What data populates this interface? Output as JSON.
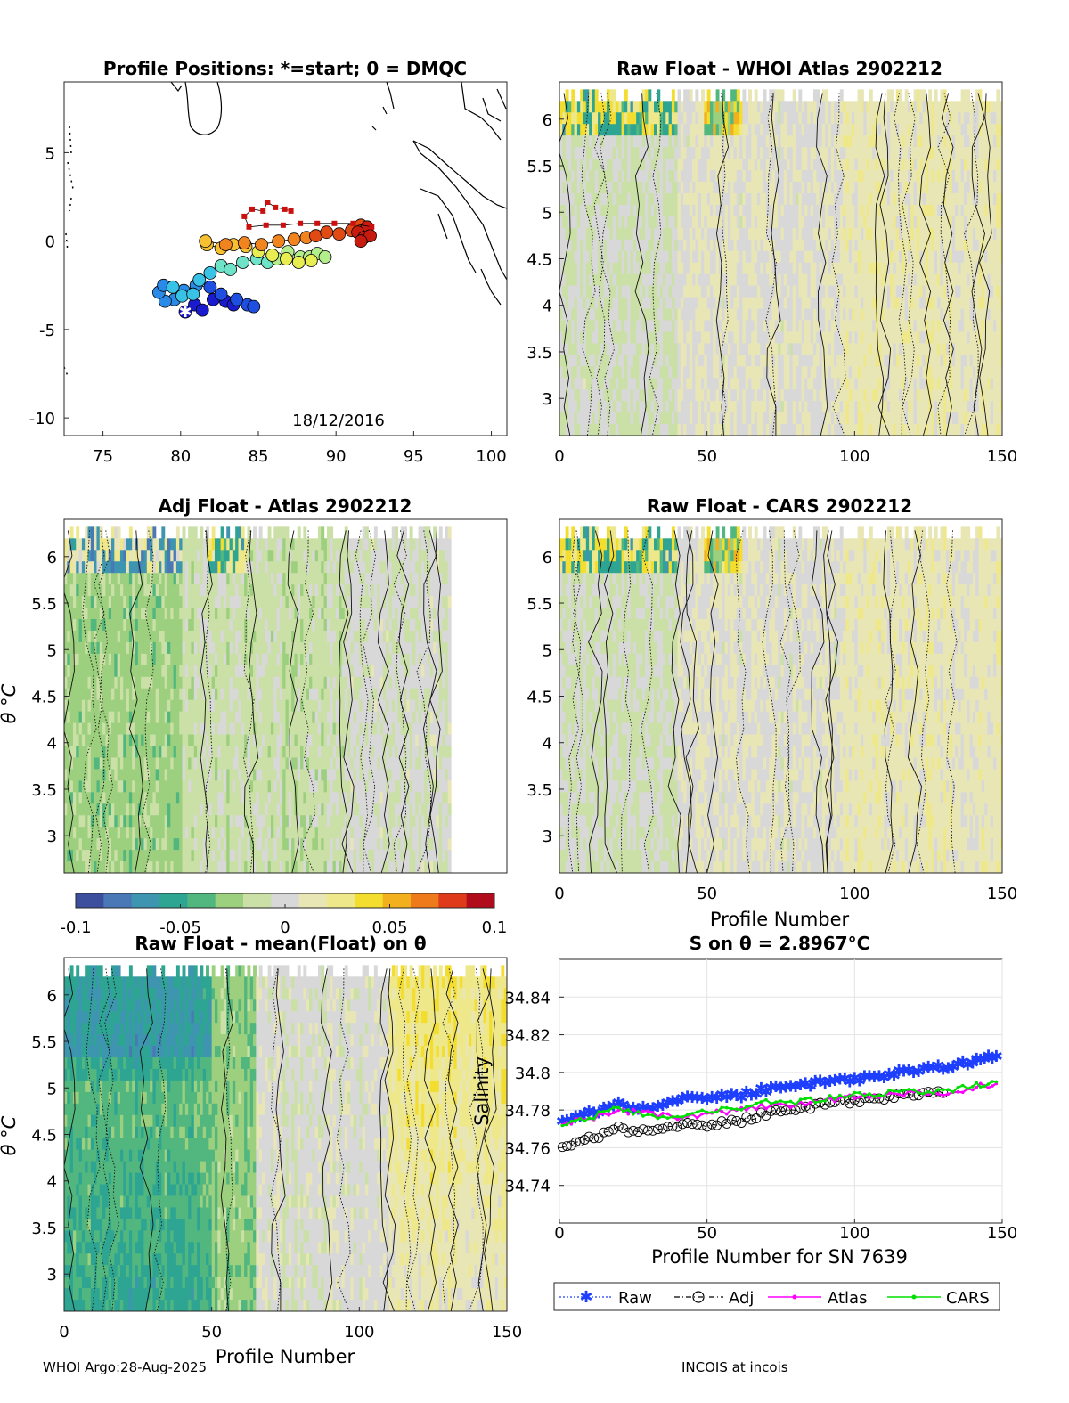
{
  "footer": {
    "left": "WHOI Argo:28-Aug-2025",
    "right": "INCOIS at incois"
  },
  "colors": {
    "palette": [
      "#3b4f9e",
      "#4a78b7",
      "#3e95b0",
      "#2ea593",
      "#52b77e",
      "#9ccf7e",
      "#cbe0a6",
      "#d8d8d8",
      "#e9e6b6",
      "#eee88a",
      "#f3dd2e",
      "#f2b01e",
      "#ef7a1c",
      "#df3a1a",
      "#b10c1c"
    ],
    "raw": "#1f3fff",
    "adj": "#000000",
    "atlas": "#ff00ff",
    "cars": "#00e000"
  },
  "chart_data": [
    {
      "id": "map",
      "type": "scatter",
      "title": "Profile Positions: *=start; 0 = DMQC",
      "annotation": "18/12/2016",
      "xlim": [
        72.5,
        101
      ],
      "ylim": [
        -11,
        9
      ],
      "xticks": [
        75,
        80,
        85,
        90,
        95,
        100
      ],
      "yticks": [
        5,
        0,
        -5,
        -10
      ],
      "xtick_labels": [
        "75",
        "80",
        "85",
        "90",
        "95",
        "100"
      ],
      "ytick_labels": [
        "5",
        "0",
        "-5",
        "-10"
      ],
      "start": [
        80.3,
        -4.0
      ],
      "track_points": [
        [
          80.3,
          -4.0
        ],
        [
          80.9,
          -3.6
        ],
        [
          81.4,
          -3.9
        ],
        [
          82.1,
          -3.3
        ],
        [
          82.9,
          -3.4
        ],
        [
          83.4,
          -3.6
        ],
        [
          84.3,
          -3.6
        ],
        [
          84.7,
          -3.7
        ],
        [
          83.6,
          -3.3
        ],
        [
          82.6,
          -3.0
        ],
        [
          81.9,
          -2.6
        ],
        [
          81.0,
          -2.5
        ],
        [
          80.2,
          -2.8
        ],
        [
          79.6,
          -3.3
        ],
        [
          79.0,
          -3.4
        ],
        [
          78.6,
          -2.9
        ],
        [
          78.9,
          -2.5
        ],
        [
          79.5,
          -2.6
        ],
        [
          80.1,
          -3.1
        ],
        [
          80.8,
          -3.0
        ],
        [
          81.2,
          -2.2
        ],
        [
          81.9,
          -1.8
        ],
        [
          82.6,
          -1.4
        ],
        [
          83.2,
          -1.6
        ],
        [
          84.0,
          -1.2
        ],
        [
          84.9,
          -1.0
        ],
        [
          85.6,
          -1.2
        ],
        [
          86.2,
          -1.0
        ],
        [
          86.9,
          -0.6
        ],
        [
          87.7,
          -0.9
        ],
        [
          88.3,
          -0.9
        ],
        [
          88.8,
          -0.7
        ],
        [
          89.3,
          -0.9
        ],
        [
          88.4,
          -1.1
        ],
        [
          87.6,
          -1.2
        ],
        [
          86.8,
          -1.0
        ],
        [
          85.9,
          -0.8
        ],
        [
          85.0,
          -0.6
        ],
        [
          84.2,
          -0.3
        ],
        [
          83.4,
          -0.2
        ],
        [
          82.6,
          -0.4
        ],
        [
          81.7,
          -0.2
        ],
        [
          81.6,
          0.0
        ],
        [
          82.9,
          -0.2
        ],
        [
          84.1,
          -0.1
        ],
        [
          85.2,
          -0.2
        ],
        [
          86.3,
          0.0
        ],
        [
          87.3,
          0.1
        ],
        [
          88.1,
          0.2
        ],
        [
          88.7,
          0.3
        ],
        [
          89.4,
          0.5
        ],
        [
          90.2,
          0.4
        ],
        [
          91.0,
          0.6
        ],
        [
          91.6,
          0.9
        ],
        [
          92.0,
          0.8
        ],
        [
          91.4,
          0.5
        ],
        [
          91.8,
          0.2
        ],
        [
          92.2,
          0.3
        ],
        [
          91.6,
          0.0
        ]
      ],
      "recent_points": [
        [
          92.3,
          0.8
        ],
        [
          91.1,
          1.0
        ],
        [
          89.9,
          1.0
        ],
        [
          88.8,
          1.0
        ],
        [
          87.7,
          1.0
        ],
        [
          86.6,
          0.9
        ],
        [
          85.5,
          0.9
        ],
        [
          84.4,
          0.8
        ],
        [
          84.1,
          1.4
        ],
        [
          84.6,
          1.8
        ],
        [
          85.3,
          1.7
        ],
        [
          85.6,
          2.2
        ],
        [
          86.1,
          1.9
        ],
        [
          86.7,
          1.8
        ],
        [
          87.1,
          1.7
        ]
      ]
    },
    {
      "id": "atlas_raw",
      "type": "heatmap",
      "title": "Raw Float - WHOI Atlas  2902212",
      "xlim": [
        0,
        150
      ],
      "ylim": [
        2.6,
        6.4
      ],
      "xticks": [
        0,
        50,
        100,
        150
      ],
      "yticks": [
        3,
        3.5,
        4,
        4.5,
        5,
        5.5,
        6
      ],
      "xtick_labels": [
        "0",
        "50",
        "100",
        "150"
      ],
      "ytick_labels": [
        "3",
        "3.5",
        "4",
        "4.5",
        "5",
        "5.5",
        "6"
      ],
      "ncols": 150,
      "nrows": 30,
      "tint": 0.006,
      "xlabel": "",
      "ylabel": ""
    },
    {
      "id": "atlas_adj",
      "type": "heatmap",
      "title": "Adj Float - Atlas  2902212",
      "xlim": [
        0,
        150
      ],
      "ylim": [
        2.6,
        6.4
      ],
      "xticks": [],
      "yticks": [
        3,
        3.5,
        4,
        4.5,
        5,
        5.5,
        6
      ],
      "ytick_labels": [
        "3",
        "3.5",
        "4",
        "4.5",
        "5",
        "5.5",
        "6"
      ],
      "ncols": 131,
      "nrows": 30,
      "tint": -0.012,
      "xlabel": "",
      "ylabel": "θ °C"
    },
    {
      "id": "cars_raw",
      "type": "heatmap",
      "title": "Raw Float - CARS  2902212",
      "xlim": [
        0,
        150
      ],
      "ylim": [
        2.6,
        6.4
      ],
      "xticks": [
        0,
        50,
        100,
        150
      ],
      "yticks": [
        3,
        3.5,
        4,
        4.5,
        5,
        5.5,
        6
      ],
      "xtick_labels": [
        "0",
        "50",
        "100",
        "150"
      ],
      "ytick_labels": [
        "3",
        "3.5",
        "4",
        "4.5",
        "5",
        "5.5",
        "6"
      ],
      "ncols": 150,
      "nrows": 30,
      "tint": 0.005,
      "xlabel": "Profile Number",
      "ylabel": ""
    },
    {
      "id": "colorbar",
      "type": "colorbar",
      "clim": [
        -0.1,
        0.1
      ],
      "ticks": [
        -0.1,
        -0.05,
        0,
        0.05,
        0.1
      ],
      "tick_labels": [
        "-0.1",
        "-0.05",
        "0",
        "0.05",
        "0.1"
      ]
    },
    {
      "id": "mean_anom",
      "type": "heatmap",
      "title": "Raw Float - mean(Float) on θ",
      "xlim": [
        0,
        150
      ],
      "ylim": [
        2.6,
        6.4
      ],
      "xticks": [
        0,
        50,
        100,
        150
      ],
      "yticks": [
        3,
        3.5,
        4,
        4.5,
        5,
        5.5,
        6
      ],
      "xtick_labels": [
        "0",
        "50",
        "100",
        "150"
      ],
      "ytick_labels": [
        "3",
        "3.5",
        "4",
        "4.5",
        "5",
        "5.5",
        "6"
      ],
      "ncols": 150,
      "nrows": 30,
      "xlabel": "Profile Number",
      "ylabel": "θ °C"
    },
    {
      "id": "salinity",
      "type": "line",
      "title": "S on θ = 2.8967°C",
      "xlabel": "Profile Number for SN 7639",
      "ylabel": "Salinity",
      "xlim": [
        0,
        150
      ],
      "ylim": [
        34.72,
        34.86
      ],
      "xticks": [
        0,
        50,
        100,
        150
      ],
      "yticks": [
        34.74,
        34.76,
        34.78,
        34.8,
        34.82,
        34.84
      ],
      "xtick_labels": [
        "0",
        "50",
        "100",
        "150"
      ],
      "ytick_labels": [
        "34.74",
        "34.76",
        "34.78",
        "34.8",
        "34.82",
        "34.84"
      ],
      "legend": [
        "Raw",
        "Adj",
        "Atlas",
        "CARS"
      ],
      "series": [
        {
          "name": "Raw",
          "x": [
            1,
            10,
            20,
            30,
            40,
            50,
            60,
            70,
            80,
            90,
            100,
            110,
            120,
            130,
            140,
            148
          ],
          "y": [
            34.774,
            34.778,
            34.782,
            34.78,
            34.785,
            34.786,
            34.787,
            34.79,
            34.792,
            34.794,
            34.796,
            34.798,
            34.8,
            34.802,
            34.805,
            34.808
          ]
        },
        {
          "name": "Adj",
          "x": [
            1,
            10,
            20,
            30,
            40,
            50,
            60,
            70,
            80,
            90,
            100,
            110,
            120,
            130
          ],
          "y": [
            34.761,
            34.765,
            34.77,
            34.769,
            34.772,
            34.772,
            34.774,
            34.778,
            34.78,
            34.783,
            34.785,
            34.787,
            34.788,
            34.789
          ]
        },
        {
          "name": "Atlas",
          "x": [
            1,
            10,
            20,
            30,
            40,
            50,
            60,
            70,
            80,
            90,
            100,
            110,
            120,
            130,
            140,
            148
          ],
          "y": [
            34.773,
            34.775,
            34.78,
            34.778,
            34.776,
            34.778,
            34.78,
            34.782,
            34.783,
            34.785,
            34.787,
            34.788,
            34.789,
            34.788,
            34.792,
            34.794
          ]
        },
        {
          "name": "CARS",
          "x": [
            1,
            10,
            20,
            30,
            40,
            50,
            60,
            70,
            80,
            90,
            100,
            110,
            120,
            130,
            140,
            148
          ],
          "y": [
            34.772,
            34.776,
            34.781,
            34.777,
            34.776,
            34.779,
            34.781,
            34.784,
            34.784,
            34.786,
            34.788,
            34.789,
            34.79,
            34.79,
            34.793,
            34.795
          ]
        }
      ]
    }
  ]
}
